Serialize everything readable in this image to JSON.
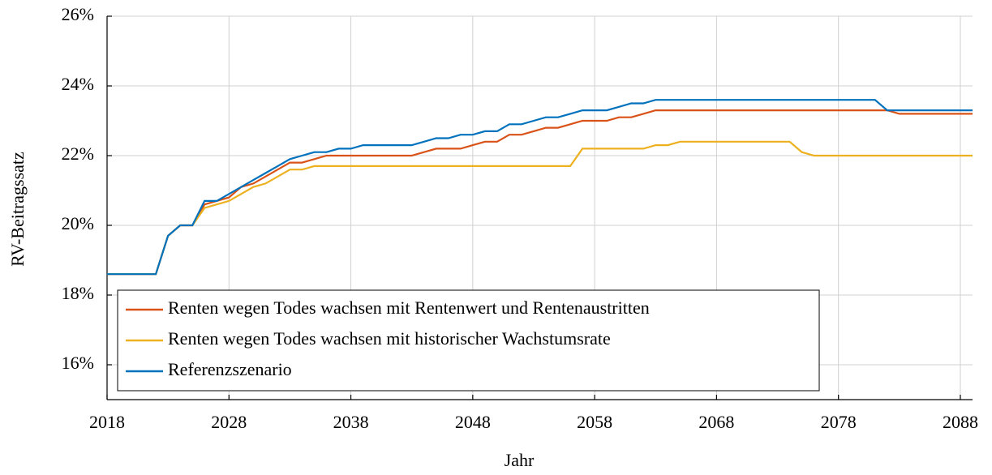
{
  "chart_data": {
    "type": "line",
    "xlabel": "Jahr",
    "ylabel": "RV-Beitragssatz",
    "x": [
      2018,
      2019,
      2020,
      2021,
      2022,
      2023,
      2024,
      2025,
      2026,
      2027,
      2028,
      2029,
      2030,
      2031,
      2032,
      2033,
      2034,
      2035,
      2036,
      2037,
      2038,
      2039,
      2040,
      2041,
      2042,
      2043,
      2044,
      2045,
      2046,
      2047,
      2048,
      2049,
      2050,
      2051,
      2052,
      2053,
      2054,
      2055,
      2056,
      2057,
      2058,
      2059,
      2060,
      2061,
      2062,
      2063,
      2064,
      2065,
      2066,
      2067,
      2068,
      2069,
      2070,
      2071,
      2072,
      2073,
      2074,
      2075,
      2076,
      2077,
      2078,
      2079,
      2080,
      2081,
      2082,
      2083,
      2084,
      2085,
      2086,
      2087,
      2088,
      2089
    ],
    "series": [
      {
        "name": "Renten wegen Todes wachsen mit Rentenwert und Rentenaustritten",
        "color": "#d95319",
        "values": [
          18.6,
          18.6,
          18.6,
          18.6,
          18.6,
          19.7,
          20.0,
          20.0,
          20.6,
          20.7,
          20.8,
          21.1,
          21.2,
          21.4,
          21.6,
          21.8,
          21.8,
          21.9,
          22.0,
          22.0,
          22.0,
          22.0,
          22.0,
          22.0,
          22.0,
          22.0,
          22.1,
          22.2,
          22.2,
          22.2,
          22.3,
          22.4,
          22.4,
          22.6,
          22.6,
          22.7,
          22.8,
          22.8,
          22.9,
          23.0,
          23.0,
          23.0,
          23.1,
          23.1,
          23.2,
          23.3,
          23.3,
          23.3,
          23.3,
          23.3,
          23.3,
          23.3,
          23.3,
          23.3,
          23.3,
          23.3,
          23.3,
          23.3,
          23.3,
          23.3,
          23.3,
          23.3,
          23.3,
          23.3,
          23.3,
          23.2,
          23.2,
          23.2,
          23.2,
          23.2,
          23.2,
          23.2
        ]
      },
      {
        "name": "Renten wegen Todes wachsen mit historischer Wachstumsrate",
        "color": "#edb120",
        "values": [
          18.6,
          18.6,
          18.6,
          18.6,
          18.6,
          19.7,
          20.0,
          20.0,
          20.5,
          20.6,
          20.7,
          20.9,
          21.1,
          21.2,
          21.4,
          21.6,
          21.6,
          21.7,
          21.7,
          21.7,
          21.7,
          21.7,
          21.7,
          21.7,
          21.7,
          21.7,
          21.7,
          21.7,
          21.7,
          21.7,
          21.7,
          21.7,
          21.7,
          21.7,
          21.7,
          21.7,
          21.7,
          21.7,
          21.7,
          22.2,
          22.2,
          22.2,
          22.2,
          22.2,
          22.2,
          22.3,
          22.3,
          22.4,
          22.4,
          22.4,
          22.4,
          22.4,
          22.4,
          22.4,
          22.4,
          22.4,
          22.4,
          22.1,
          22.0,
          22.0,
          22.0,
          22.0,
          22.0,
          22.0,
          22.0,
          22.0,
          22.0,
          22.0,
          22.0,
          22.0,
          22.0,
          22.0
        ]
      },
      {
        "name": "Referenzszenario",
        "color": "#0072bd",
        "values": [
          18.6,
          18.6,
          18.6,
          18.6,
          18.6,
          19.7,
          20.0,
          20.0,
          20.7,
          20.7,
          20.9,
          21.1,
          21.3,
          21.5,
          21.7,
          21.9,
          22.0,
          22.1,
          22.1,
          22.2,
          22.2,
          22.3,
          22.3,
          22.3,
          22.3,
          22.3,
          22.4,
          22.5,
          22.5,
          22.6,
          22.6,
          22.7,
          22.7,
          22.9,
          22.9,
          23.0,
          23.1,
          23.1,
          23.2,
          23.3,
          23.3,
          23.3,
          23.4,
          23.5,
          23.5,
          23.6,
          23.6,
          23.6,
          23.6,
          23.6,
          23.6,
          23.6,
          23.6,
          23.6,
          23.6,
          23.6,
          23.6,
          23.6,
          23.6,
          23.6,
          23.6,
          23.6,
          23.6,
          23.6,
          23.3,
          23.3,
          23.3,
          23.3,
          23.3,
          23.3,
          23.3,
          23.3
        ]
      }
    ],
    "xlim": [
      2018,
      2089
    ],
    "ylim": [
      15,
      26
    ],
    "xticks": [
      2018,
      2028,
      2038,
      2048,
      2058,
      2068,
      2078,
      2088
    ],
    "yticks": [
      {
        "value": 16,
        "label": "16%"
      },
      {
        "value": 18,
        "label": "18%"
      },
      {
        "value": 20,
        "label": "20%"
      },
      {
        "value": 22,
        "label": "22%"
      },
      {
        "value": 24,
        "label": "24%"
      },
      {
        "value": 26,
        "label": "26%"
      }
    ],
    "grid": true,
    "legend": "lower left"
  }
}
